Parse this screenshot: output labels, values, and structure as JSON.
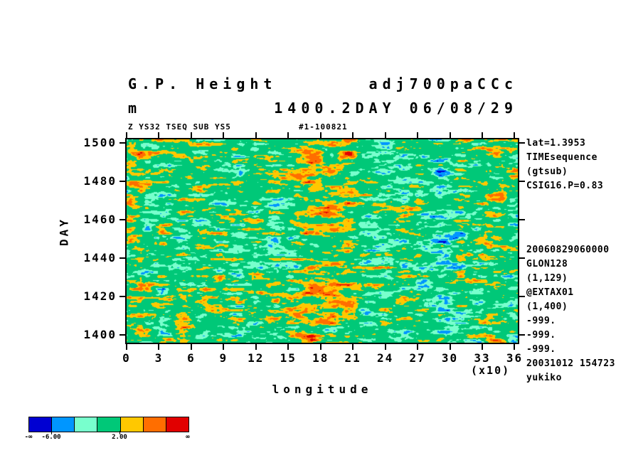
{
  "header": {
    "title_left": "G.P. Height",
    "title_right": "adj700paCCc",
    "subtitle_left": "m",
    "subtitle_right": "1400.2DAY 06/08/29",
    "meta_left": "Z YS32 TSEQ SUB YS5",
    "meta_right": "#1-100821"
  },
  "right_panel": {
    "block1": [
      "lat=1.3953",
      "TIMEsequence",
      "(gtsub)",
      "CSIG16.P=0.83"
    ],
    "block2": [
      "20060829060000",
      "GLON128",
      "(1,129)",
      "@EXTAX01",
      "(1,400)",
      "-999.",
      "-999.",
      "-999.",
      "20031012 154723",
      "yukiko"
    ]
  },
  "chart_data": {
    "type": "heatmap",
    "title": "G.P. Height adj700paCCc",
    "subtitle": "1400.2DAY 06/08/29",
    "units": "m",
    "xlabel": "longitude",
    "xunit_note": "(x10)",
    "ylabel": "DAY",
    "xlim": [
      0,
      36.3
    ],
    "ylim": [
      1396,
      1502
    ],
    "x_ticks": [
      0,
      3,
      6,
      9,
      12,
      15,
      18,
      21,
      24,
      27,
      30,
      33,
      36
    ],
    "y_ticks": [
      1500,
      1480,
      1460,
      1440,
      1420,
      1400
    ],
    "grid": false,
    "palette": {
      "colors": [
        "#0000d2",
        "#0096ff",
        "#78ffcd",
        "#00c878",
        "#ffc800",
        "#ff6e00",
        "#e10000"
      ],
      "thresholds": [
        -6,
        -4,
        -2,
        2,
        4,
        6
      ],
      "labels": [
        {
          "pos": 0.0,
          "text": "-∞"
        },
        {
          "pos": 0.1429,
          "text": "-6.00"
        },
        {
          "pos": 0.5714,
          "text": "2.00"
        },
        {
          "pos": 1.0,
          "text": "∞"
        }
      ]
    },
    "field": {
      "description": "Noisy geopotential-height anomaly field (m) over longitude x day; mostly -2..2 (green) with horizontally elongated warm (yellow/orange/red) and cold (cyan/blue/navy) patches; warm columns near lon 0-2, 15-21 and 33-35 (x10 deg), cold column near lon 26-31 (x10 deg). Reproduced procedurally from these parameters.",
      "seed": 1234,
      "octaves": [
        {
          "sx": 26,
          "sy": 6,
          "amp": 1.0
        },
        {
          "sx": 10,
          "sy": 3,
          "amp": 0.55
        },
        {
          "sx": 4,
          "sy": 2,
          "amp": 0.3
        }
      ],
      "scale": 7.5,
      "bias_bands": [
        {
          "from": 0.0,
          "to": 0.045,
          "bias": 1.4
        },
        {
          "from": 0.42,
          "to": 0.6,
          "bias": 1.7
        },
        {
          "from": 0.73,
          "to": 0.85,
          "bias": -1.9
        },
        {
          "from": 0.905,
          "to": 0.975,
          "bias": 1.5
        }
      ]
    }
  }
}
